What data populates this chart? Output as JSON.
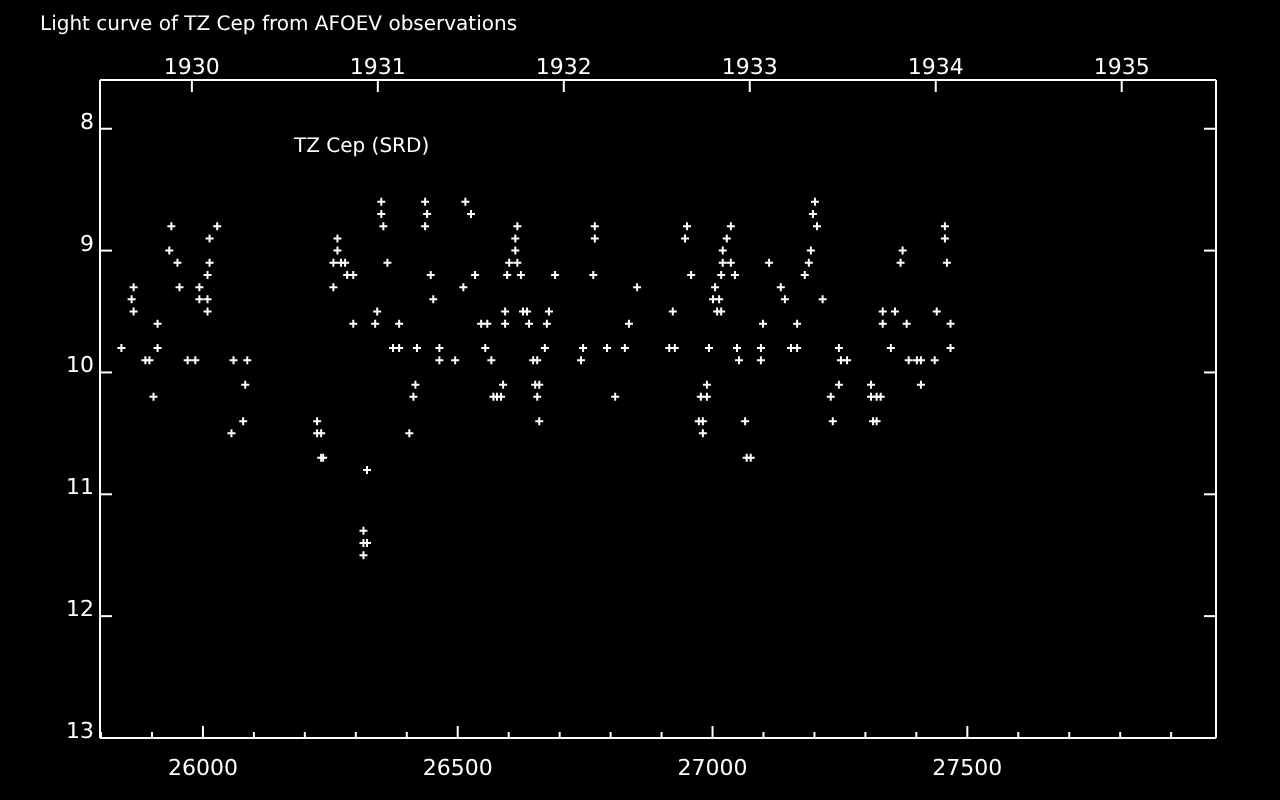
{
  "chart_data": {
    "type": "scatter",
    "title": "Light curve of TZ Cep from AFOEV observations",
    "annotations": [
      "TZ Cep (SRD)"
    ],
    "xlim": [
      25798,
      27988
    ],
    "ylim": [
      13,
      7.6
    ],
    "x2lim": [
      1929.506,
      1935.507
    ],
    "xticks": [
      {
        "value": 25800,
        "label": null
      },
      {
        "value": 25900,
        "label": null
      },
      26000,
      {
        "value": 26100,
        "label": null
      },
      {
        "value": 26200,
        "label": null
      },
      {
        "value": 26300,
        "label": null
      },
      {
        "value": 26400,
        "label": null
      },
      26500,
      {
        "value": 26600,
        "label": null
      },
      {
        "value": 26700,
        "label": null
      },
      {
        "value": 26800,
        "label": null
      },
      {
        "value": 26900,
        "label": null
      },
      27000,
      {
        "value": 27100,
        "label": null
      },
      {
        "value": 27200,
        "label": null
      },
      {
        "value": 27300,
        "label": null
      },
      {
        "value": 27400,
        "label": null
      },
      27500,
      {
        "value": 27600,
        "label": null
      },
      {
        "value": 27700,
        "label": null
      },
      {
        "value": 27800,
        "label": null
      },
      {
        "value": 27900,
        "label": null
      }
    ],
    "x2ticks": [
      1930,
      1931,
      1932,
      1933,
      1934,
      1935
    ],
    "yticks": [
      8,
      9,
      10,
      11,
      12,
      13
    ],
    "marker": "cross",
    "series": [
      {
        "color": "#ffffff",
        "x": [
          26350,
          26350,
          26354,
          25938,
          26028,
          26013,
          26264,
          25934,
          26264,
          25950,
          26013,
          26256,
          26271,
          26279,
          26362,
          26009,
          26283,
          26295,
          25864,
          25954,
          25993,
          26256,
          25860,
          25993,
          26009,
          25864,
          26009,
          26342,
          25911,
          26295,
          26338,
          26385,
          25840,
          25911,
          26373,
          26385,
          25887,
          25895,
          25970,
          25985,
          26060,
          26087,
          26083,
          25903,
          26079,
          26224,
          26056,
          26224,
          26232,
          26232,
          26236,
          26322,
          26315,
          26315,
          26322,
          26315,
          26436,
          26515,
          26440,
          26526,
          26436,
          26617,
          26769,
          26950,
          26613,
          26769,
          26946,
          26613,
          26601,
          26617,
          26447,
          26534,
          26597,
          26624,
          26691,
          26766,
          26958,
          26511,
          26852,
          26452,
          26593,
          26628,
          26636,
          26679,
          26922,
          26546,
          26558,
          26593,
          26640,
          26675,
          26836,
          26420,
          26464,
          26554,
          26671,
          26746,
          26793,
          26828,
          26915,
          26926,
          26993,
          26464,
          26495,
          26566,
          26648,
          26656,
          26742,
          26417,
          26589,
          26652,
          26660,
          26989,
          26413,
          26570,
          26577,
          26585,
          26656,
          26809,
          26977,
          26989,
          26660,
          26973,
          26981,
          26405,
          26981,
          27201,
          27197,
          27036,
          27205,
          27456,
          27028,
          27456,
          27020,
          27193,
          27373,
          27020,
          27036,
          27111,
          27189,
          27369,
          27460,
          27017,
          27044,
          27181,
          27005,
          27134,
          27001,
          27013,
          27142,
          27216,
          27009,
          27017,
          27334,
          27358,
          27440,
          27099,
          27166,
          27334,
          27381,
          27467,
          27048,
          27095,
          27154,
          27166,
          27248,
          27350,
          27467,
          27052,
          27095,
          27252,
          27264,
          27385,
          27401,
          27409,
          27436,
          27248,
          27311,
          27409,
          27232,
          27311,
          27322,
          27330,
          27064,
          27236,
          27315,
          27322,
          27067,
          27075
        ],
        "values": [
          8.6,
          8.7,
          8.8,
          8.8,
          8.8,
          8.9,
          8.9,
          9.0,
          9.0,
          9.1,
          9.1,
          9.1,
          9.1,
          9.1,
          9.1,
          9.2,
          9.2,
          9.2,
          9.3,
          9.3,
          9.3,
          9.3,
          9.4,
          9.4,
          9.4,
          9.5,
          9.5,
          9.5,
          9.6,
          9.6,
          9.6,
          9.6,
          9.8,
          9.8,
          9.8,
          9.8,
          9.9,
          9.9,
          9.9,
          9.9,
          9.9,
          9.9,
          10.1,
          10.2,
          10.4,
          10.4,
          10.5,
          10.5,
          10.5,
          10.7,
          10.7,
          10.8,
          11.3,
          11.4,
          11.4,
          11.5,
          8.6,
          8.6,
          8.7,
          8.7,
          8.8,
          8.8,
          8.8,
          8.8,
          8.9,
          8.9,
          8.9,
          9.0,
          9.1,
          9.1,
          9.2,
          9.2,
          9.2,
          9.2,
          9.2,
          9.2,
          9.2,
          9.3,
          9.3,
          9.4,
          9.5,
          9.5,
          9.5,
          9.5,
          9.5,
          9.6,
          9.6,
          9.6,
          9.6,
          9.6,
          9.6,
          9.8,
          9.8,
          9.8,
          9.8,
          9.8,
          9.8,
          9.8,
          9.8,
          9.8,
          9.8,
          9.9,
          9.9,
          9.9,
          9.9,
          9.9,
          9.9,
          10.1,
          10.1,
          10.1,
          10.1,
          10.1,
          10.2,
          10.2,
          10.2,
          10.2,
          10.2,
          10.2,
          10.2,
          10.2,
          10.4,
          10.4,
          10.4,
          10.5,
          10.5,
          8.6,
          8.7,
          8.8,
          8.8,
          8.8,
          8.9,
          8.9,
          9.0,
          9.0,
          9.0,
          9.1,
          9.1,
          9.1,
          9.1,
          9.1,
          9.1,
          9.2,
          9.2,
          9.2,
          9.3,
          9.3,
          9.4,
          9.4,
          9.4,
          9.4,
          9.5,
          9.5,
          9.5,
          9.5,
          9.5,
          9.6,
          9.6,
          9.6,
          9.6,
          9.6,
          9.8,
          9.8,
          9.8,
          9.8,
          9.8,
          9.8,
          9.8,
          9.9,
          9.9,
          9.9,
          9.9,
          9.9,
          9.9,
          9.9,
          9.9,
          10.1,
          10.1,
          10.1,
          10.2,
          10.2,
          10.2,
          10.2,
          10.4,
          10.4,
          10.4,
          10.4,
          10.7,
          10.7
        ]
      }
    ]
  }
}
